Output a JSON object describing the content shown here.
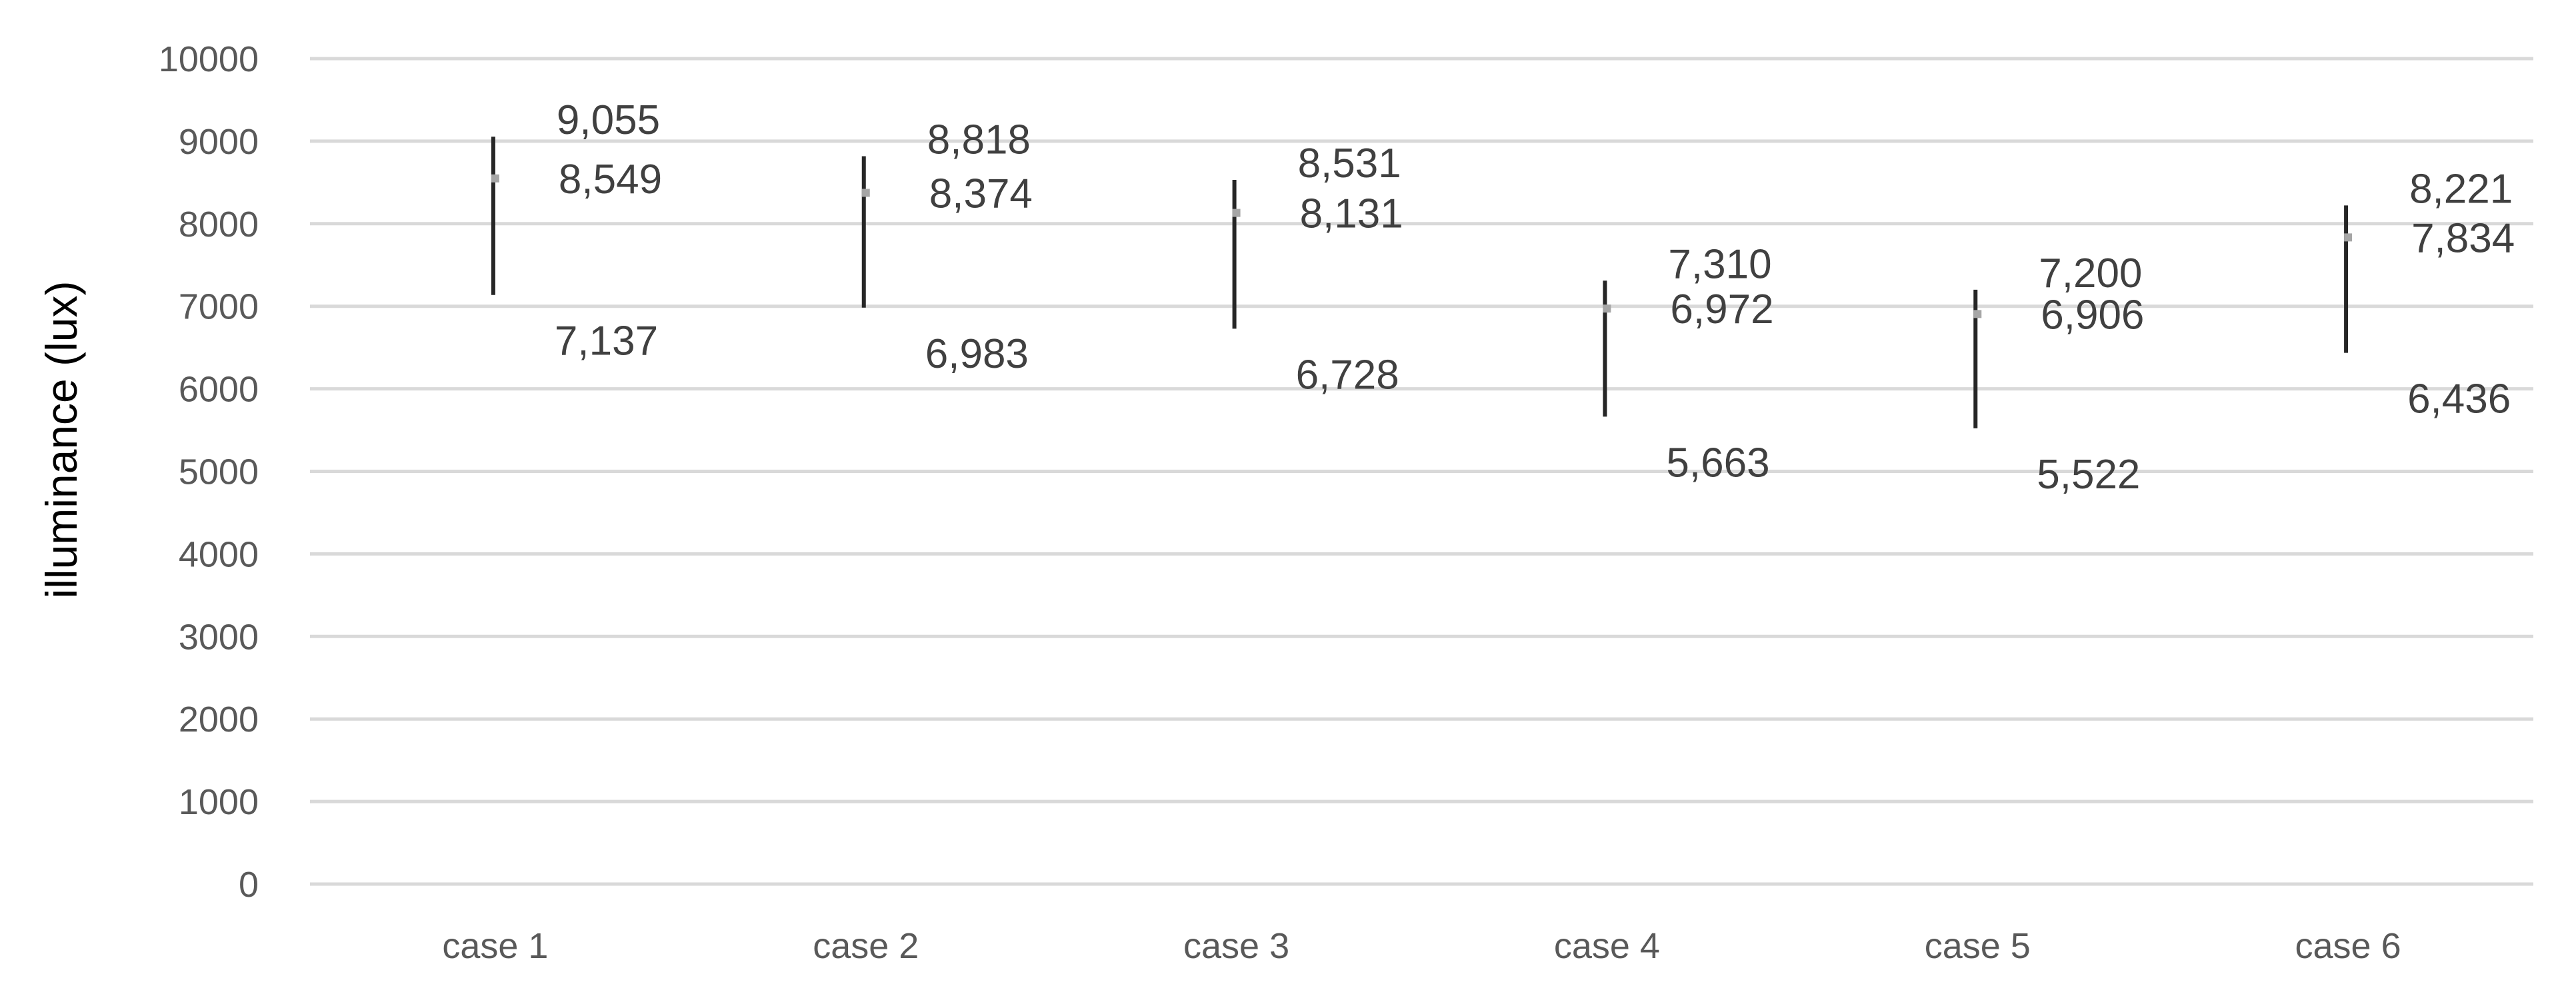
{
  "chart_data": {
    "type": "range",
    "title": "",
    "xlabel": "",
    "ylabel": "illuminance (lux)",
    "ylim": [
      0,
      10000
    ],
    "yticks": [
      "0",
      "1000",
      "2000",
      "3000",
      "4000",
      "5000",
      "6000",
      "7000",
      "8000",
      "9000",
      "10000"
    ],
    "grid": true,
    "legend": "none",
    "categories": [
      "case 1",
      "case 2",
      "case 3",
      "case 4",
      "case 5",
      "case 6"
    ],
    "series": [
      {
        "values": [
          9055,
          8818,
          8531,
          7310,
          7200,
          8221
        ],
        "labels": [
          "9,055",
          "8,818",
          "8,531",
          "7,310",
          "7,200",
          "8,221"
        ]
      },
      {
        "values": [
          8549,
          8374,
          8131,
          6972,
          6906,
          7834
        ],
        "labels": [
          "8,549",
          "8,374",
          "8,131",
          "6,972",
          "6,906",
          "7,834"
        ]
      },
      {
        "values": [
          7137,
          6983,
          6728,
          5663,
          5522,
          6436
        ],
        "labels": [
          "7,137",
          "6,983",
          "6,728",
          "5,663",
          "5,522",
          "6,436"
        ]
      }
    ],
    "colors": {
      "range_line": "#262626",
      "mean_marker": "#a6a6a6",
      "grid": "#d9d9d9",
      "tick_text": "#595959",
      "label_text": "#404040"
    }
  }
}
